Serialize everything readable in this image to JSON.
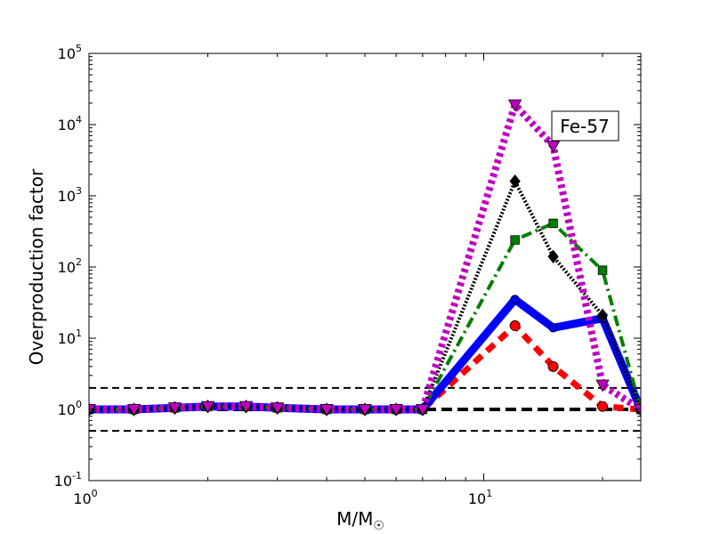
{
  "chart_data": {
    "type": "line",
    "title": "",
    "xlabel": "M/M",
    "xlabel_sub": "☉",
    "ylabel": "Overproduction factor",
    "xscale": "log",
    "yscale": "log",
    "xlim": [
      1,
      25
    ],
    "ylim": [
      0.1,
      100000
    ],
    "grid": false,
    "x_ticks": [
      {
        "value": 1,
        "base": "10",
        "exp": "0"
      },
      {
        "value": 10,
        "base": "10",
        "exp": "1"
      }
    ],
    "y_ticks": [
      {
        "value": 0.1,
        "base": "10",
        "exp": "-1"
      },
      {
        "value": 1,
        "base": "10",
        "exp": "0"
      },
      {
        "value": 10,
        "base": "10",
        "exp": "1"
      },
      {
        "value": 100,
        "base": "10",
        "exp": "2"
      },
      {
        "value": 1000,
        "base": "10",
        "exp": "3"
      },
      {
        "value": 10000,
        "base": "10",
        "exp": "4"
      },
      {
        "value": 100000,
        "base": "10",
        "exp": "5"
      }
    ],
    "annotation": "Fe-57",
    "reference_lines": [
      {
        "y": 2,
        "style": "dashed",
        "color": "#000000",
        "width": 2
      },
      {
        "y": 1,
        "style": "dashed",
        "color": "#000000",
        "width": 4
      },
      {
        "y": 0.5,
        "style": "dashed",
        "color": "#000000",
        "width": 2
      }
    ],
    "series": [
      {
        "color": "#ff0000",
        "line": "dashed",
        "width": 7,
        "marker": "circle",
        "marker_size": 7,
        "x": [
          1,
          1.3,
          1.65,
          2,
          2.5,
          3,
          4,
          5,
          6,
          7,
          12,
          15,
          20,
          25
        ],
        "y": [
          1,
          1,
          1.05,
          1.1,
          1.1,
          1.05,
          1,
          1,
          1,
          1,
          15,
          4,
          1.1,
          1
        ]
      },
      {
        "color": "#0000ff",
        "line": "solid",
        "width": 9,
        "marker": "circle",
        "marker_size": 6,
        "x": [
          1,
          1.3,
          1.65,
          2,
          2.5,
          3,
          4,
          5,
          6,
          7,
          12,
          15,
          20,
          25
        ],
        "y": [
          1,
          1,
          1.05,
          1.1,
          1.1,
          1.05,
          1,
          1,
          1,
          1,
          35,
          14,
          19,
          1
        ]
      },
      {
        "color": "#007f00",
        "line": "dashdot",
        "width": 4,
        "marker": "square",
        "marker_size": 6,
        "x": [
          1,
          1.3,
          1.65,
          2,
          2.5,
          3,
          4,
          5,
          6,
          7,
          12,
          15,
          20,
          25
        ],
        "y": [
          1,
          1,
          1.05,
          1.1,
          1.1,
          1.05,
          1,
          1,
          1,
          1,
          240,
          410,
          90,
          1
        ]
      },
      {
        "color": "#000000",
        "line": "dotted",
        "width": 4,
        "marker": "diamond",
        "marker_size": 7,
        "x": [
          1,
          1.3,
          1.65,
          2,
          2.5,
          3,
          4,
          5,
          6,
          7,
          12,
          15,
          20,
          25
        ],
        "y": [
          1,
          1,
          1.05,
          1.1,
          1.1,
          1.05,
          1,
          1,
          1,
          1,
          1600,
          140,
          21,
          1
        ]
      },
      {
        "color": "#bf00bf",
        "line": "dotted",
        "width": 8,
        "marker": "triangle-down",
        "marker_size": 7,
        "x": [
          1,
          1.3,
          1.65,
          2,
          2.5,
          3,
          4,
          5,
          6,
          7,
          12,
          15,
          20,
          25
        ],
        "y": [
          1,
          1,
          1.05,
          1.1,
          1.1,
          1.05,
          1,
          1,
          1,
          1,
          19000,
          5000,
          2.2,
          1
        ]
      }
    ]
  }
}
